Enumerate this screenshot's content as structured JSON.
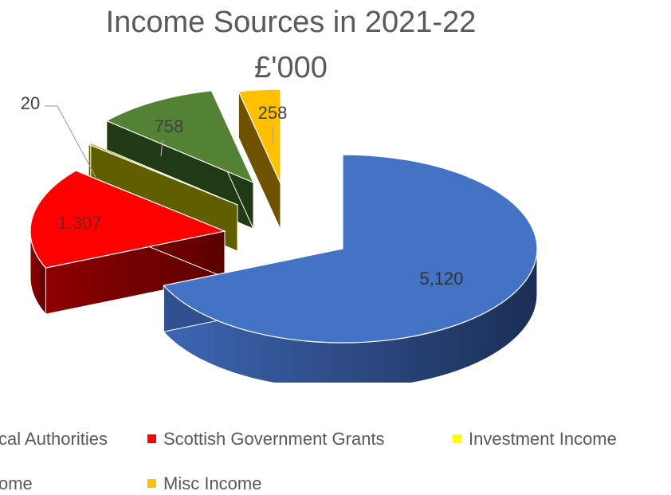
{
  "chart_data": {
    "type": "pie",
    "title": "Income Sources in 2021-22",
    "subtitle": "£'000",
    "categories": [
      "cal Authorities",
      "Scottish Government Grants",
      "Investment Income",
      "ome",
      "Misc Income"
    ],
    "values": [
      5120,
      1307,
      20,
      758,
      258
    ],
    "data_labels": [
      "5,120",
      "1,307",
      "20",
      "758",
      "258"
    ],
    "colors": [
      "#4472C4",
      "#FF0000",
      "#9C9C00",
      "#548235",
      "#FFC000"
    ],
    "legend_colors": [
      "#4472C4",
      "#FF0000",
      "#FFFF00",
      "#548235",
      "#FFC000"
    ],
    "legend_placement": "bottom",
    "style": "3d-exploded"
  }
}
